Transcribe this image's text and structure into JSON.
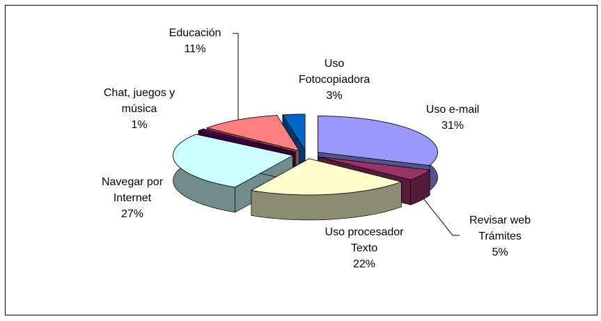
{
  "chart_data": {
    "type": "pie",
    "categories": [
      "Uso e-mail",
      "Revisar web Trámites",
      "Uso procesador Texto",
      "Navegar por Internet",
      "Chat, juegos y música",
      "Educación",
      "Uso Fotocopiadora"
    ],
    "values": [
      31,
      5,
      22,
      27,
      1,
      11,
      3
    ],
    "value_labels": [
      "31%",
      "5%",
      "22%",
      "27%",
      "1%",
      "11%",
      "3%"
    ],
    "colors": [
      "#9999ff",
      "#993366",
      "#ffffcc",
      "#ccffff",
      "#660066",
      "#ff8080",
      "#0066cc"
    ]
  }
}
